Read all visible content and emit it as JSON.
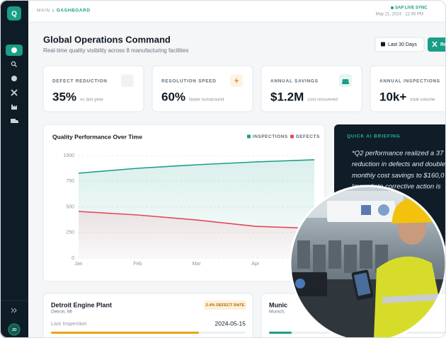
{
  "sidebar": {
    "logo": "Q",
    "user_initials": "JD"
  },
  "header": {
    "breadcrumb": [
      "MAIN",
      "DASHBOARD"
    ],
    "sync_status": "SAP LIVE SYNC",
    "timestamp": "May 21, 2024 · 12:45 PM"
  },
  "page": {
    "title": "Global Operations Command",
    "subtitle": "Real-time quality visibility across 8 manufacturing facilities",
    "date_range_button": "Last 30 Days",
    "action_button": "Re"
  },
  "kpis": [
    {
      "label": "DEFECT REDUCTION",
      "value": "35%",
      "note": "vs last year"
    },
    {
      "label": "RESOLUTION SPEED",
      "value": "60%",
      "note": "faster turnaround"
    },
    {
      "label": "ANNUAL SAVINGS",
      "value": "$1.2M",
      "note": "cost recovered"
    },
    {
      "label": "ANNUAL INSPECTIONS",
      "value": "10k+",
      "note": "total volume"
    }
  ],
  "chart": {
    "type": "line",
    "title": "Quality Performance Over Time",
    "categories": [
      "Jan",
      "Feb",
      "Mar",
      "Apr",
      null
    ],
    "series": [
      {
        "name": "INSPECTIONS",
        "color": "#1a9e87",
        "values": [
          828,
          876,
          910,
          938,
          959
        ]
      },
      {
        "name": "DEFECTS",
        "color": "#e5485a",
        "values": [
          455,
          421,
          372,
          310,
          290
        ]
      }
    ],
    "ylim": [
      0,
      1000
    ],
    "yticks": [
      0,
      250,
      500,
      750,
      1000
    ],
    "grid": true
  },
  "briefing": {
    "title": "QUICK AI BRIEFING",
    "lines": [
      "*Q2 performance realized a 37",
      "reduction in defects and double",
      "monthly cost savings to $160,0",
      "Immediate corrective action is"
    ]
  },
  "plants": [
    {
      "name": "Detroit Engine Plant",
      "location": "Detroit, MI",
      "badge": "2.4% DEFECT RATE",
      "inspection_label": "Last Inspection",
      "inspection_date": "2024-05-15",
      "progress": 76
    },
    {
      "name": "Munic",
      "location": "Munich,"
    }
  ]
}
